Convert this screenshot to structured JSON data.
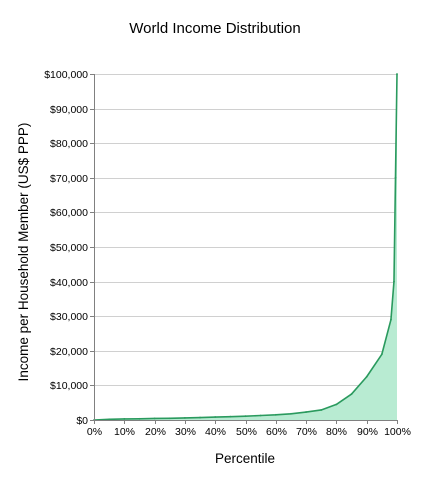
{
  "chart_data": {
    "type": "area",
    "title": "World Income Distribution",
    "xlabel": "Percentile",
    "ylabel": "Income per Household Member  (US$ PPP)",
    "x_tick_labels": [
      "0%",
      "10%",
      "20%",
      "30%",
      "40%",
      "50%",
      "60%",
      "70%",
      "80%",
      "90%",
      "100%"
    ],
    "y_tick_labels": [
      "$0",
      "$10,000",
      "$20,000",
      "$30,000",
      "$40,000",
      "$50,000",
      "$60,000",
      "$70,000",
      "$80,000",
      "$90,000",
      "$100,000"
    ],
    "xlim": [
      0,
      100
    ],
    "ylim": [
      0,
      100000
    ],
    "grid": true,
    "legend": "none",
    "series": [
      {
        "x": [
          0,
          5,
          10,
          15,
          20,
          25,
          30,
          35,
          40,
          45,
          50,
          55,
          60,
          65,
          70,
          75,
          80,
          85,
          90,
          95,
          98,
          99,
          99.5,
          100
        ],
        "y": [
          0,
          200,
          300,
          350,
          450,
          500,
          600,
          700,
          850,
          950,
          1100,
          1300,
          1500,
          1800,
          2300,
          2900,
          4500,
          7500,
          12500,
          19000,
          29000,
          40000,
          70000,
          100000
        ]
      }
    ],
    "colors": {
      "fill": "#b8ebd2",
      "line": "#2a9a5e",
      "grid": "#d0d0d0",
      "axis": "#808080"
    }
  }
}
